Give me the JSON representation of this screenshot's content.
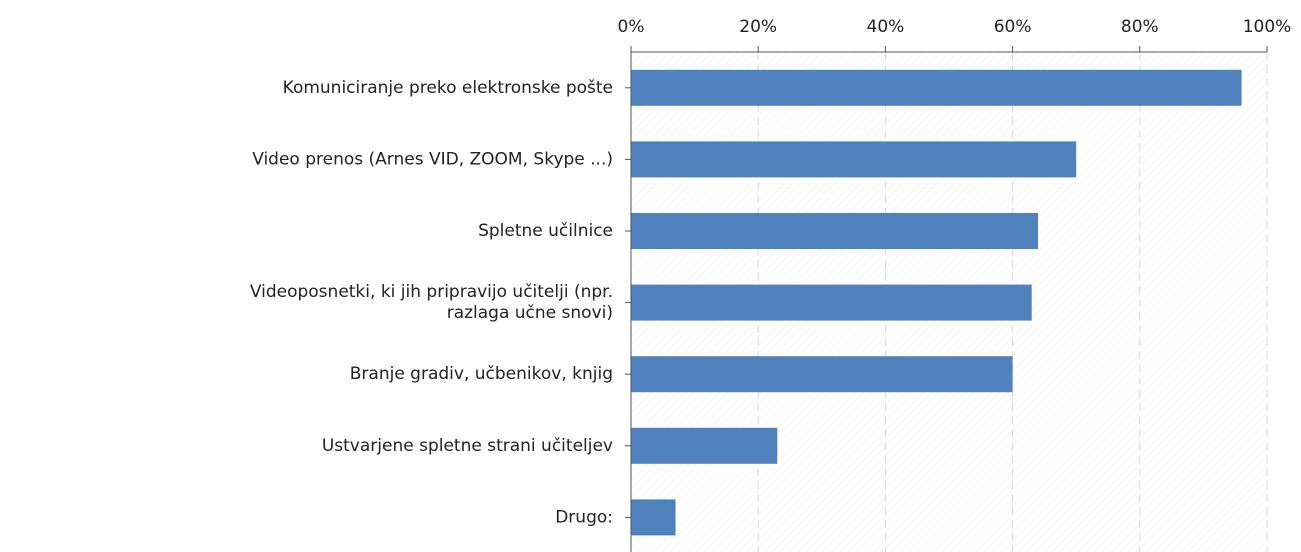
{
  "chart_data": {
    "type": "bar",
    "orientation": "horizontal",
    "categories": [
      "Komuniciranje preko elektronske pošte",
      "Video prenos (Arnes VID, ZOOM, Skype ...)",
      "Spletne učilnice",
      "Videoposnetki, ki jih pripravijo učitelji (npr. razlaga učne snovi)",
      "Branje gradiv, učbenikov, knjig",
      "Ustvarjene spletne strani učiteljev",
      "Drugo:"
    ],
    "values": [
      96,
      70,
      64,
      63,
      60,
      23,
      7
    ],
    "color": "#4f81bd",
    "xlim": [
      0,
      100
    ],
    "xticks": [
      {
        "value": 0,
        "label": "0%"
      },
      {
        "value": 20,
        "label": "20%"
      },
      {
        "value": 40,
        "label": "40%"
      },
      {
        "value": 60,
        "label": "60%"
      },
      {
        "value": 80,
        "label": "80%"
      },
      {
        "value": 100,
        "label": "100%"
      }
    ],
    "grid": true
  }
}
